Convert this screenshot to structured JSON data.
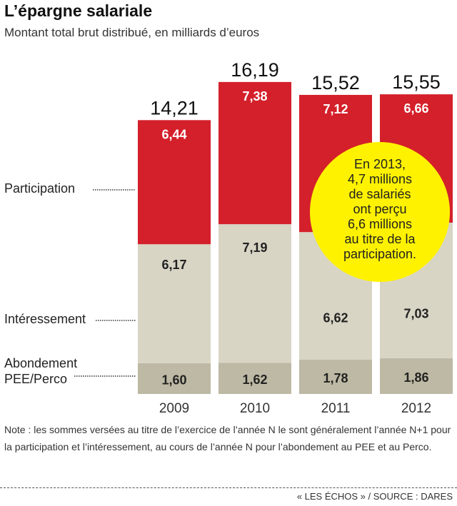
{
  "title": "L’épargne salariale",
  "subtitle": "Montant total brut distribué, en milliards d’euros",
  "note": "Note :  les sommes versées au titre de l’exercice de l’année N le sont généralement l’année N+1 pour la participation et l’intéressement, au cours de l’année N pour l’abondement au PEE et au Perco.",
  "source": "« LES ÉCHOS » / SOURCE : DARES",
  "chart_data": {
    "type": "bar",
    "stacked": true,
    "title": "L’épargne salariale",
    "ylabel": "Milliards d’euros",
    "categories": [
      "2009",
      "2010",
      "2011",
      "2012"
    ],
    "totals": [
      "14,21",
      "16,19",
      "15,52",
      "15,55"
    ],
    "series": [
      {
        "name": "Abondement PEE/Perco",
        "labels": [
          "1,60",
          "1,62",
          "1,78",
          "1,86"
        ],
        "values": [
          1.6,
          1.62,
          1.78,
          1.86
        ],
        "color": "#bdb9a4",
        "textColor": "#222"
      },
      {
        "name": "Intéressement",
        "labels": [
          "6,17",
          "7,19",
          "6,62",
          "7,03"
        ],
        "values": [
          6.17,
          7.19,
          6.62,
          7.03
        ],
        "color": "#d8d5c5",
        "textColor": "#222"
      },
      {
        "name": "Participation",
        "labels": [
          "6,44",
          "7,38",
          "7,12",
          "6,66"
        ],
        "values": [
          6.44,
          7.38,
          7.12,
          6.66
        ],
        "color": "#d4202a",
        "textColor": "#fff"
      }
    ],
    "annotation": {
      "lines": [
        "En 2013,",
        "4,7 millions",
        "de salariés",
        "ont perçu",
        "6,6 millions",
        "au titre de la",
        "participation."
      ],
      "color": "#fff200"
    }
  }
}
